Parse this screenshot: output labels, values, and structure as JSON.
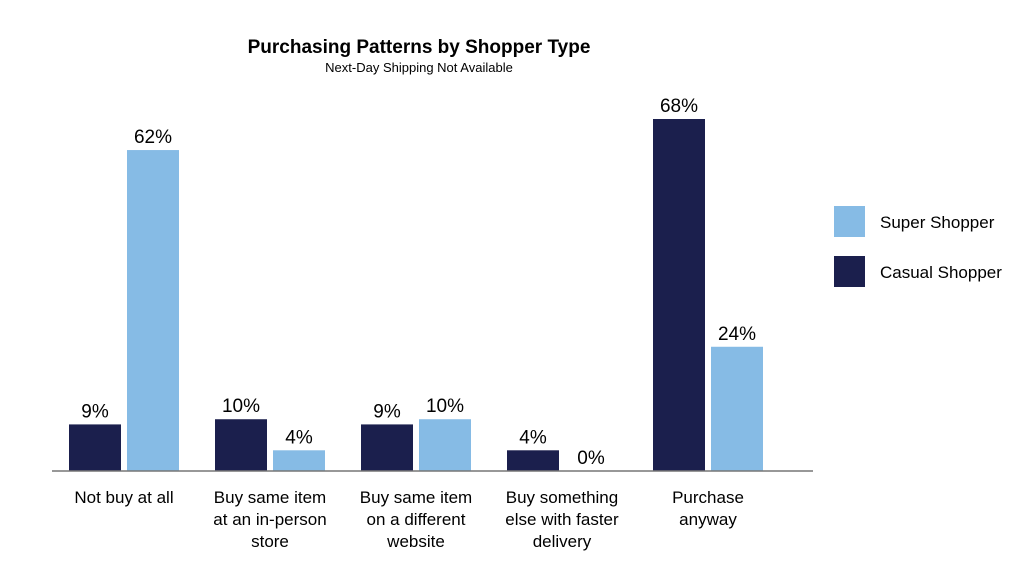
{
  "chart_data": {
    "type": "bar",
    "title": "Purchasing Patterns by Shopper Type",
    "subtitle": "Next-Day Shipping Not Available",
    "categories": [
      [
        "Not buy at all"
      ],
      [
        "Buy same item",
        "at an in-person",
        "store"
      ],
      [
        "Buy same item",
        "on a different",
        "website"
      ],
      [
        "Buy something",
        "else with faster",
        "delivery"
      ],
      [
        "Purchase",
        "anyway"
      ]
    ],
    "series": [
      {
        "name": "Casual Shopper",
        "color": "#1b1f4d",
        "values": [
          9,
          10,
          9,
          4,
          68
        ],
        "labels": [
          "9%",
          "10%",
          "9%",
          "4%",
          "68%"
        ]
      },
      {
        "name": "Super Shopper",
        "color": "#86bbe5",
        "values": [
          62,
          4,
          10,
          0,
          24
        ],
        "labels": [
          "62%",
          "4%",
          "10%",
          "0%",
          "24%"
        ]
      }
    ],
    "legend": {
      "position": "right",
      "order": [
        "Super Shopper",
        "Casual Shopper"
      ]
    },
    "ylim": [
      0,
      70
    ],
    "grid": false,
    "xlabel": "",
    "ylabel": ""
  }
}
